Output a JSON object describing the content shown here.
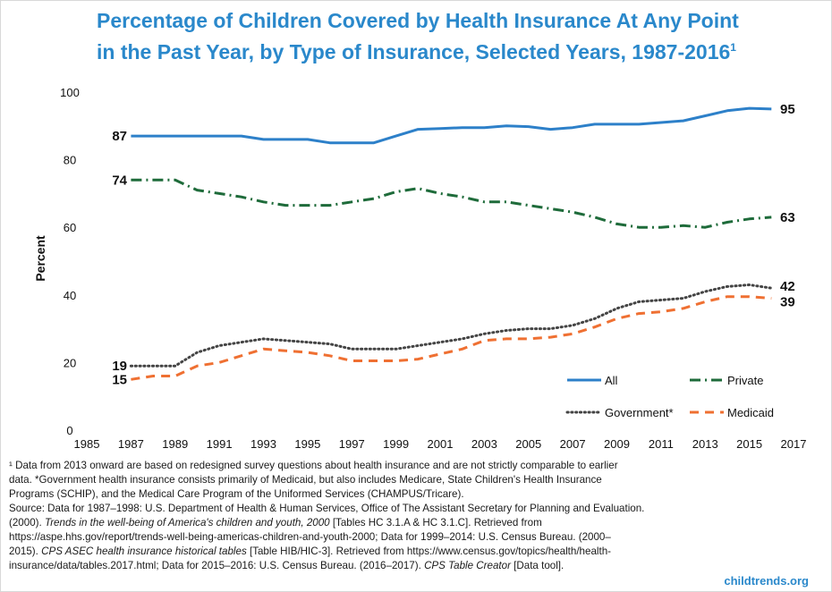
{
  "title_main": "Percentage of Children Covered by Health Insurance At Any Point in the Past Year, by Type of Insurance, Selected Years, 1987-2016",
  "title_sup": "1",
  "chart_data": {
    "type": "line",
    "title": "Percentage of Children Covered by Health Insurance At Any Point in the Past Year, by Type of Insurance, Selected Years, 1987-2016",
    "ylabel": "Percent",
    "xlabel": "",
    "xlim": [
      1985,
      2017
    ],
    "ylim": [
      0,
      100
    ],
    "x_ticks": [
      "1985",
      "1987",
      "1989",
      "1991",
      "1993",
      "1995",
      "1997",
      "1999",
      "2001",
      "2003",
      "2005",
      "2007",
      "2009",
      "2011",
      "2013",
      "2015",
      "2017"
    ],
    "y_ticks": [
      "0",
      "20",
      "40",
      "60",
      "80",
      "100"
    ],
    "grid": false,
    "legend_position": "lower-right",
    "x": [
      1987,
      1988,
      1989,
      1990,
      1991,
      1992,
      1993,
      1994,
      1995,
      1996,
      1997,
      1998,
      1999,
      2000,
      2001,
      2002,
      2003,
      2004,
      2005,
      2006,
      2007,
      2008,
      2009,
      2010,
      2011,
      2012,
      2013,
      2014,
      2015,
      2016
    ],
    "series": [
      {
        "name": "All",
        "color": "#2d80c9",
        "dash": "solid",
        "start_label": "87",
        "end_label": "95",
        "values": [
          87,
          87,
          87,
          87,
          87,
          87,
          86,
          86,
          86,
          85,
          85,
          85,
          87,
          89,
          89.2,
          89.5,
          89.5,
          90,
          89.8,
          89,
          89.5,
          90.5,
          90.5,
          90.5,
          91,
          91.5,
          93,
          94.5,
          95.2,
          95
        ]
      },
      {
        "name": "Private",
        "color": "#1e6b3a",
        "dash": "dashdot",
        "start_label": "74",
        "end_label": "63",
        "values": [
          74,
          74,
          74,
          71,
          70,
          69,
          67.5,
          66.5,
          66.5,
          66.5,
          67.5,
          68.5,
          70.5,
          71.5,
          70,
          69,
          67.5,
          67.5,
          66.5,
          65.5,
          64.5,
          63,
          61,
          60,
          60,
          60.5,
          60,
          61.5,
          62.5,
          63
        ]
      },
      {
        "name": "Government*",
        "color": "#444444",
        "dash": "dotted",
        "start_label": "19",
        "end_label": "42",
        "values": [
          19,
          19,
          19,
          23,
          25,
          26,
          27,
          26.5,
          26,
          25.5,
          24,
          24,
          24,
          25,
          26,
          27,
          28.5,
          29.5,
          30,
          30,
          31,
          33,
          36,
          38,
          38.5,
          39,
          41,
          42.5,
          43,
          42
        ]
      },
      {
        "name": "Medicaid",
        "color": "#ef7032",
        "dash": "dashed",
        "start_label": "15",
        "end_label": "39",
        "values": [
          15,
          16,
          16,
          19,
          20,
          22,
          24,
          23.5,
          23,
          22,
          20.5,
          20.5,
          20.5,
          21,
          22.5,
          24,
          26.5,
          27,
          27,
          27.5,
          28.5,
          30.5,
          33,
          34.5,
          35,
          36,
          38,
          39.5,
          39.5,
          39
        ]
      }
    ]
  },
  "footnotes": {
    "line1": "¹ Data from 2013 onward are based on redesigned survey questions about health insurance and are not strictly comparable to earlier",
    "line2": "data. *Government health insurance consists primarily of Medicaid, but also includes Medicare, State Children's Health Insurance",
    "line3": "Programs (SCHIP), and the Medical Care Program of the Uniformed Services (CHAMPUS/Tricare).",
    "line4": "Source: Data for 1987–1998: U.S. Department of Health & Human Services, Office of The Assistant Secretary for Planning and Evaluation.",
    "line5a": "(2000). ",
    "line5b": "Trends in the well-being of America's children and youth, 2000",
    "line5c": " [Tables HC 3.1.A & HC 3.1.C]. Retrieved from",
    "line6": "https://aspe.hhs.gov/report/trends-well-being-americas-children-and-youth-2000; Data for 1999–2014: U.S. Census Bureau. (2000–",
    "line7a": "2015). ",
    "line7b": "CPS ASEC health insurance historical tables",
    "line7c": " [Table HIB/HIC-3]. Retrieved from https://www.census.gov/topics/health/health-",
    "line8a": "insurance/data/tables.2017.html; Data for 2015–2016: U.S. Census Bureau. (2016–2017). ",
    "line8b": "CPS Table Creator",
    "line8c": " [Data tool]."
  },
  "credit": "childtrends.org"
}
